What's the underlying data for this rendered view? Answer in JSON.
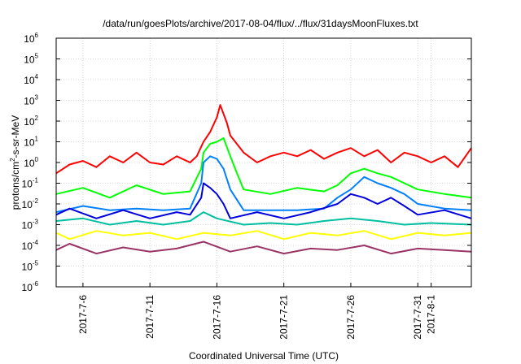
{
  "chart_data": {
    "type": "line",
    "title": "/data/run/goesPlots/archive/2017-08-04/flux/../flux/31daysMoonFluxes.txt",
    "xlabel": "Coordinated Universal Time (UTC)",
    "ylabel": {
      "prefix": "protons/cm",
      "sup": "2",
      "suffix": "-s-sr-MeV"
    },
    "yscale": "log",
    "ylim": [
      1e-06,
      1000000.0
    ],
    "xlim": [
      "2017-07-04",
      "2017-08-04"
    ],
    "grid": true,
    "yticks": [
      {
        "value": 1e-06,
        "base": "10",
        "exp": "-6"
      },
      {
        "value": 1e-05,
        "base": "10",
        "exp": "-5"
      },
      {
        "value": 0.0001,
        "base": "10",
        "exp": "-4"
      },
      {
        "value": 0.001,
        "base": "10",
        "exp": "-3"
      },
      {
        "value": 0.01,
        "base": "10",
        "exp": "-2"
      },
      {
        "value": 0.1,
        "base": "10",
        "exp": "-1"
      },
      {
        "value": 1,
        "base": "10",
        "exp": "0"
      },
      {
        "value": 10,
        "base": "10",
        "exp": "1"
      },
      {
        "value": 100,
        "base": "10",
        "exp": "2"
      },
      {
        "value": 1000,
        "base": "10",
        "exp": "3"
      },
      {
        "value": 10000,
        "base": "10",
        "exp": "4"
      },
      {
        "value": 100000,
        "base": "10",
        "exp": "5"
      },
      {
        "value": 1000000,
        "base": "10",
        "exp": "6"
      }
    ],
    "xticks": [
      {
        "date": "2017-07-06",
        "label": "2017-7-6"
      },
      {
        "date": "2017-07-11",
        "label": "2017-7-11"
      },
      {
        "date": "2017-07-16",
        "label": "2017-7-16"
      },
      {
        "date": "2017-07-21",
        "label": "2017-7-21"
      },
      {
        "date": "2017-07-26",
        "label": "2017-7-26"
      },
      {
        "date": "2017-07-31",
        "label": "2017-7-31"
      },
      {
        "date": "2017-08-01",
        "label": "2017-8-1"
      }
    ],
    "series": [
      {
        "color": "#ff0000",
        "points": [
          [
            "2017-07-04",
            0.3
          ],
          [
            "2017-07-05",
            0.8
          ],
          [
            "2017-07-06",
            1.2
          ],
          [
            "2017-07-07",
            0.6
          ],
          [
            "2017-07-08",
            2
          ],
          [
            "2017-07-09",
            1
          ],
          [
            "2017-07-10",
            3
          ],
          [
            "2017-07-11",
            1
          ],
          [
            "2017-07-12",
            0.8
          ],
          [
            "2017-07-13",
            2
          ],
          [
            "2017-07-14",
            1
          ],
          [
            "2017-07-14T12:00",
            2
          ],
          [
            "2017-07-15",
            10
          ],
          [
            "2017-07-15T12:00",
            30
          ],
          [
            "2017-07-16",
            150
          ],
          [
            "2017-07-16T06:00",
            600
          ],
          [
            "2017-07-16T18:00",
            80
          ],
          [
            "2017-07-17",
            20
          ],
          [
            "2017-07-18",
            3
          ],
          [
            "2017-07-19",
            1
          ],
          [
            "2017-07-20",
            2
          ],
          [
            "2017-07-21",
            3
          ],
          [
            "2017-07-22",
            2
          ],
          [
            "2017-07-23",
            4
          ],
          [
            "2017-07-24",
            1.5
          ],
          [
            "2017-07-25",
            3
          ],
          [
            "2017-07-26",
            5
          ],
          [
            "2017-07-27",
            2
          ],
          [
            "2017-07-28",
            4
          ],
          [
            "2017-07-29",
            1
          ],
          [
            "2017-07-30",
            3
          ],
          [
            "2017-07-31",
            2
          ],
          [
            "2017-08-01",
            1
          ],
          [
            "2017-08-02",
            2
          ],
          [
            "2017-08-03",
            0.6
          ],
          [
            "2017-08-04",
            5
          ]
        ]
      },
      {
        "color": "#00ff00",
        "points": [
          [
            "2017-07-04",
            0.03
          ],
          [
            "2017-07-06",
            0.06
          ],
          [
            "2017-07-08",
            0.02
          ],
          [
            "2017-07-10",
            0.08
          ],
          [
            "2017-07-12",
            0.03
          ],
          [
            "2017-07-14",
            0.04
          ],
          [
            "2017-07-14T20:00",
            0.5
          ],
          [
            "2017-07-15",
            3
          ],
          [
            "2017-07-15T12:00",
            8
          ],
          [
            "2017-07-16",
            10
          ],
          [
            "2017-07-16T12:00",
            15
          ],
          [
            "2017-07-17",
            2
          ],
          [
            "2017-07-17T12:00",
            0.3
          ],
          [
            "2017-07-18",
            0.05
          ],
          [
            "2017-07-20",
            0.03
          ],
          [
            "2017-07-22",
            0.06
          ],
          [
            "2017-07-24",
            0.04
          ],
          [
            "2017-07-25",
            0.08
          ],
          [
            "2017-07-26",
            0.3
          ],
          [
            "2017-07-27",
            0.5
          ],
          [
            "2017-07-28",
            0.3
          ],
          [
            "2017-07-29",
            0.2
          ],
          [
            "2017-07-30",
            0.1
          ],
          [
            "2017-07-31",
            0.05
          ],
          [
            "2017-08-02",
            0.03
          ],
          [
            "2017-08-04",
            0.02
          ]
        ]
      },
      {
        "color": "#0080ff",
        "points": [
          [
            "2017-07-04",
            0.004
          ],
          [
            "2017-07-06",
            0.008
          ],
          [
            "2017-07-08",
            0.005
          ],
          [
            "2017-07-10",
            0.006
          ],
          [
            "2017-07-12",
            0.005
          ],
          [
            "2017-07-14",
            0.006
          ],
          [
            "2017-07-14T20:00",
            0.1
          ],
          [
            "2017-07-15",
            1
          ],
          [
            "2017-07-15T12:00",
            2
          ],
          [
            "2017-07-16",
            1.5
          ],
          [
            "2017-07-16T12:00",
            0.5
          ],
          [
            "2017-07-17",
            0.05
          ],
          [
            "2017-07-18",
            0.005
          ],
          [
            "2017-07-20",
            0.005
          ],
          [
            "2017-07-22",
            0.005
          ],
          [
            "2017-07-24",
            0.006
          ],
          [
            "2017-07-25",
            0.02
          ],
          [
            "2017-07-26",
            0.05
          ],
          [
            "2017-07-27",
            0.2
          ],
          [
            "2017-07-28",
            0.1
          ],
          [
            "2017-07-29",
            0.06
          ],
          [
            "2017-07-30",
            0.03
          ],
          [
            "2017-07-31",
            0.01
          ],
          [
            "2017-08-02",
            0.006
          ],
          [
            "2017-08-04",
            0.005
          ]
        ]
      },
      {
        "color": "#0000dd",
        "points": [
          [
            "2017-07-04",
            0.003
          ],
          [
            "2017-07-05",
            0.006
          ],
          [
            "2017-07-07",
            0.002
          ],
          [
            "2017-07-09",
            0.005
          ],
          [
            "2017-07-11",
            0.002
          ],
          [
            "2017-07-13",
            0.004
          ],
          [
            "2017-07-14",
            0.003
          ],
          [
            "2017-07-14T20:00",
            0.02
          ],
          [
            "2017-07-15",
            0.1
          ],
          [
            "2017-07-15T12:00",
            0.06
          ],
          [
            "2017-07-16",
            0.03
          ],
          [
            "2017-07-16T12:00",
            0.01
          ],
          [
            "2017-07-17",
            0.002
          ],
          [
            "2017-07-19",
            0.004
          ],
          [
            "2017-07-21",
            0.002
          ],
          [
            "2017-07-23",
            0.004
          ],
          [
            "2017-07-25",
            0.01
          ],
          [
            "2017-07-26",
            0.03
          ],
          [
            "2017-07-27",
            0.02
          ],
          [
            "2017-07-28",
            0.01
          ],
          [
            "2017-07-29",
            0.02
          ],
          [
            "2017-07-30",
            0.008
          ],
          [
            "2017-07-31",
            0.003
          ],
          [
            "2017-08-02",
            0.005
          ],
          [
            "2017-08-04",
            0.002
          ]
        ]
      },
      {
        "color": "#00bfa0",
        "points": [
          [
            "2017-07-04",
            0.0015
          ],
          [
            "2017-07-06",
            0.002
          ],
          [
            "2017-07-08",
            0.001
          ],
          [
            "2017-07-10",
            0.0015
          ],
          [
            "2017-07-12",
            0.001
          ],
          [
            "2017-07-14",
            0.0015
          ],
          [
            "2017-07-15",
            0.004
          ],
          [
            "2017-07-16",
            0.002
          ],
          [
            "2017-07-18",
            0.001
          ],
          [
            "2017-07-20",
            0.0012
          ],
          [
            "2017-07-22",
            0.001
          ],
          [
            "2017-07-24",
            0.0015
          ],
          [
            "2017-07-26",
            0.002
          ],
          [
            "2017-07-28",
            0.0015
          ],
          [
            "2017-07-30",
            0.001
          ],
          [
            "2017-08-01",
            0.0012
          ],
          [
            "2017-08-04",
            0.001
          ]
        ]
      },
      {
        "color": "#ffff00",
        "points": [
          [
            "2017-07-04",
            0.0004
          ],
          [
            "2017-07-05",
            0.0002
          ],
          [
            "2017-07-07",
            0.0005
          ],
          [
            "2017-07-09",
            0.0003
          ],
          [
            "2017-07-11",
            0.0004
          ],
          [
            "2017-07-13",
            0.0002
          ],
          [
            "2017-07-15",
            0.0004
          ],
          [
            "2017-07-17",
            0.0003
          ],
          [
            "2017-07-19",
            0.0005
          ],
          [
            "2017-07-21",
            0.0002
          ],
          [
            "2017-07-23",
            0.0004
          ],
          [
            "2017-07-25",
            0.0003
          ],
          [
            "2017-07-27",
            0.0005
          ],
          [
            "2017-07-29",
            0.0002
          ],
          [
            "2017-07-31",
            0.0004
          ],
          [
            "2017-08-02",
            0.0003
          ],
          [
            "2017-08-04",
            0.0004
          ]
        ]
      },
      {
        "color": "#993366",
        "points": [
          [
            "2017-07-04",
            6e-05
          ],
          [
            "2017-07-05",
            0.00012
          ],
          [
            "2017-07-07",
            4e-05
          ],
          [
            "2017-07-09",
            8e-05
          ],
          [
            "2017-07-11",
            5e-05
          ],
          [
            "2017-07-13",
            7e-05
          ],
          [
            "2017-07-15",
            0.00015
          ],
          [
            "2017-07-17",
            5e-05
          ],
          [
            "2017-07-19",
            9e-05
          ],
          [
            "2017-07-21",
            4e-05
          ],
          [
            "2017-07-23",
            7e-05
          ],
          [
            "2017-07-25",
            6e-05
          ],
          [
            "2017-07-27",
            0.0001
          ],
          [
            "2017-07-29",
            4e-05
          ],
          [
            "2017-07-31",
            7e-05
          ],
          [
            "2017-08-02",
            6e-05
          ],
          [
            "2017-08-04",
            5e-05
          ]
        ]
      }
    ]
  }
}
